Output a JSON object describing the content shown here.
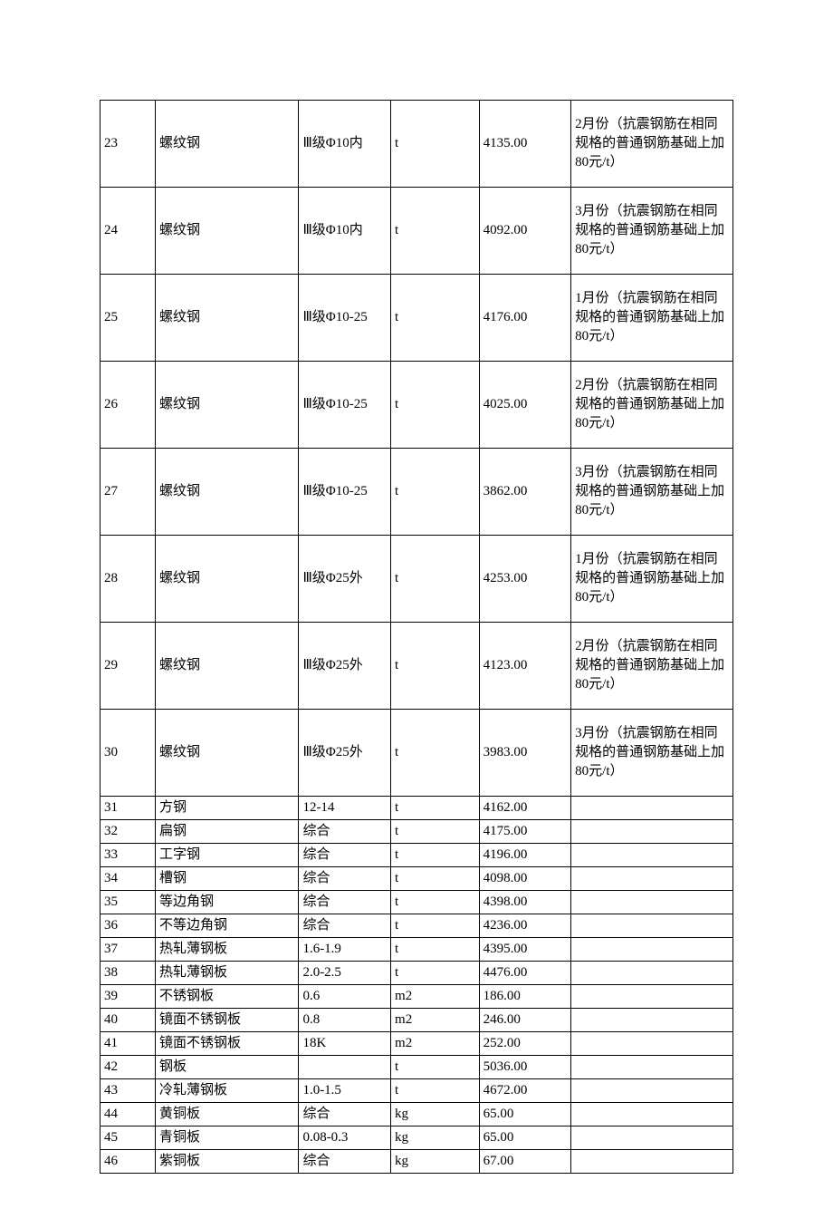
{
  "table": {
    "border_color": "#000000",
    "background_color": "#ffffff",
    "font_family": "SimSun",
    "cell_font_size": 15,
    "columns": [
      {
        "width_pct": 7.5
      },
      {
        "width_pct": 19.5
      },
      {
        "width_pct": 12.5
      },
      {
        "width_pct": 12
      },
      {
        "width_pct": 12.5
      },
      {
        "width_pct": 22
      }
    ],
    "rows": [
      {
        "tall": true,
        "cells": [
          "23",
          "螺纹钢",
          "Ⅲ级Φ10内",
          "t",
          "4135.00",
          "2月份（抗震钢筋在相同规格的普通钢筋基础上加80元/t）"
        ]
      },
      {
        "tall": true,
        "cells": [
          "24",
          "螺纹钢",
          "Ⅲ级Φ10内",
          "t",
          "4092.00",
          "3月份（抗震钢筋在相同规格的普通钢筋基础上加80元/t）"
        ]
      },
      {
        "tall": true,
        "cells": [
          "25",
          "螺纹钢",
          "Ⅲ级Φ10-25",
          "t",
          "4176.00",
          "1月份（抗震钢筋在相同规格的普通钢筋基础上加80元/t）"
        ]
      },
      {
        "tall": true,
        "cells": [
          "26",
          "螺纹钢",
          "Ⅲ级Φ10-25",
          "t",
          "4025.00",
          "2月份（抗震钢筋在相同规格的普通钢筋基础上加80元/t）"
        ]
      },
      {
        "tall": true,
        "cells": [
          "27",
          "螺纹钢",
          "Ⅲ级Φ10-25",
          "t",
          "3862.00",
          "3月份（抗震钢筋在相同规格的普通钢筋基础上加80元/t）"
        ]
      },
      {
        "tall": true,
        "cells": [
          "28",
          "螺纹钢",
          "Ⅲ级Φ25外",
          "t",
          "4253.00",
          "1月份（抗震钢筋在相同规格的普通钢筋基础上加80元/t）"
        ]
      },
      {
        "tall": true,
        "cells": [
          "29",
          "螺纹钢",
          "Ⅲ级Φ25外",
          "t",
          "4123.00",
          "2月份（抗震钢筋在相同规格的普通钢筋基础上加80元/t）"
        ]
      },
      {
        "tall": true,
        "cells": [
          "30",
          "螺纹钢",
          "Ⅲ级Φ25外",
          "t",
          "3983.00",
          "3月份（抗震钢筋在相同规格的普通钢筋基础上加80元/t）"
        ]
      },
      {
        "tall": false,
        "cells": [
          "31",
          "方钢",
          "12-14",
          "t",
          "4162.00",
          ""
        ]
      },
      {
        "tall": false,
        "cells": [
          "32",
          "扁钢",
          "综合",
          "t",
          "4175.00",
          ""
        ]
      },
      {
        "tall": false,
        "cells": [
          "33",
          "工字钢",
          "综合",
          "t",
          "4196.00",
          ""
        ]
      },
      {
        "tall": false,
        "cells": [
          "34",
          "槽钢",
          "综合",
          "t",
          "4098.00",
          ""
        ]
      },
      {
        "tall": false,
        "cells": [
          "35",
          "等边角钢",
          "综合",
          "t",
          "4398.00",
          ""
        ]
      },
      {
        "tall": false,
        "cells": [
          "36",
          "不等边角钢",
          "综合",
          "t",
          "4236.00",
          ""
        ]
      },
      {
        "tall": false,
        "cells": [
          "37",
          "热轧薄钢板",
          "1.6-1.9",
          "t",
          "4395.00",
          ""
        ]
      },
      {
        "tall": false,
        "cells": [
          "38",
          "热轧薄钢板",
          "2.0-2.5",
          "t",
          "4476.00",
          ""
        ]
      },
      {
        "tall": false,
        "cells": [
          "39",
          "不锈钢板",
          "0.6",
          "m2",
          "186.00",
          ""
        ]
      },
      {
        "tall": false,
        "cells": [
          "40",
          "镜面不锈钢板",
          "0.8",
          "m2",
          "246.00",
          ""
        ]
      },
      {
        "tall": false,
        "cells": [
          "41",
          "镜面不锈钢板",
          "18K",
          "m2",
          "252.00",
          ""
        ]
      },
      {
        "tall": false,
        "cells": [
          "42",
          "钢板",
          "",
          "t",
          "5036.00",
          ""
        ]
      },
      {
        "tall": false,
        "cells": [
          "43",
          "冷轧薄钢板",
          "1.0-1.5",
          "t",
          "4672.00",
          ""
        ]
      },
      {
        "tall": false,
        "cells": [
          "44",
          "黄铜板",
          "综合",
          "kg",
          "65.00",
          ""
        ]
      },
      {
        "tall": false,
        "cells": [
          "45",
          "青铜板",
          "0.08-0.3",
          "kg",
          "65.00",
          ""
        ]
      },
      {
        "tall": false,
        "cells": [
          "46",
          "紫铜板",
          "综合",
          "kg",
          "67.00",
          ""
        ]
      }
    ]
  }
}
